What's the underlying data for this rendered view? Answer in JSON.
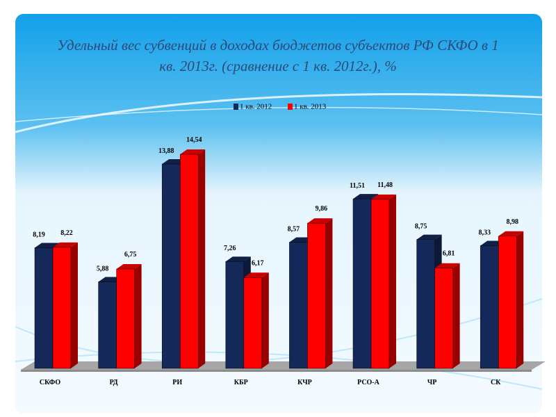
{
  "chart_data": {
    "type": "bar3d",
    "title": "Удельный вес субвенций в доходах бюджетов субъектов РФ СКФО в 1 кв. 2013г. (сравнение с 1 кв. 2012г.), %",
    "categories": [
      "СКФО",
      "РД",
      "РИ",
      "КБР",
      "КЧР",
      "РСО-А",
      "ЧР",
      "СК"
    ],
    "series": [
      {
        "name": "1 кв. 2012",
        "color": "#14285a",
        "values": [
          8.19,
          5.88,
          13.88,
          7.26,
          8.57,
          11.51,
          8.75,
          8.33
        ],
        "value_labels": [
          "8,19",
          "5,88",
          "13,88",
          "7,26",
          "8,57",
          "11,51",
          "8,75",
          "8,33"
        ]
      },
      {
        "name": "1 кв. 2013",
        "color": "#ff0000",
        "values": [
          8.22,
          6.75,
          14.54,
          6.17,
          9.86,
          11.48,
          6.81,
          8.98
        ],
        "value_labels": [
          "8,22",
          "6,75",
          "14,54",
          "6,17",
          "9,86",
          "11,48",
          "6,81",
          "8,98"
        ]
      }
    ]
  }
}
